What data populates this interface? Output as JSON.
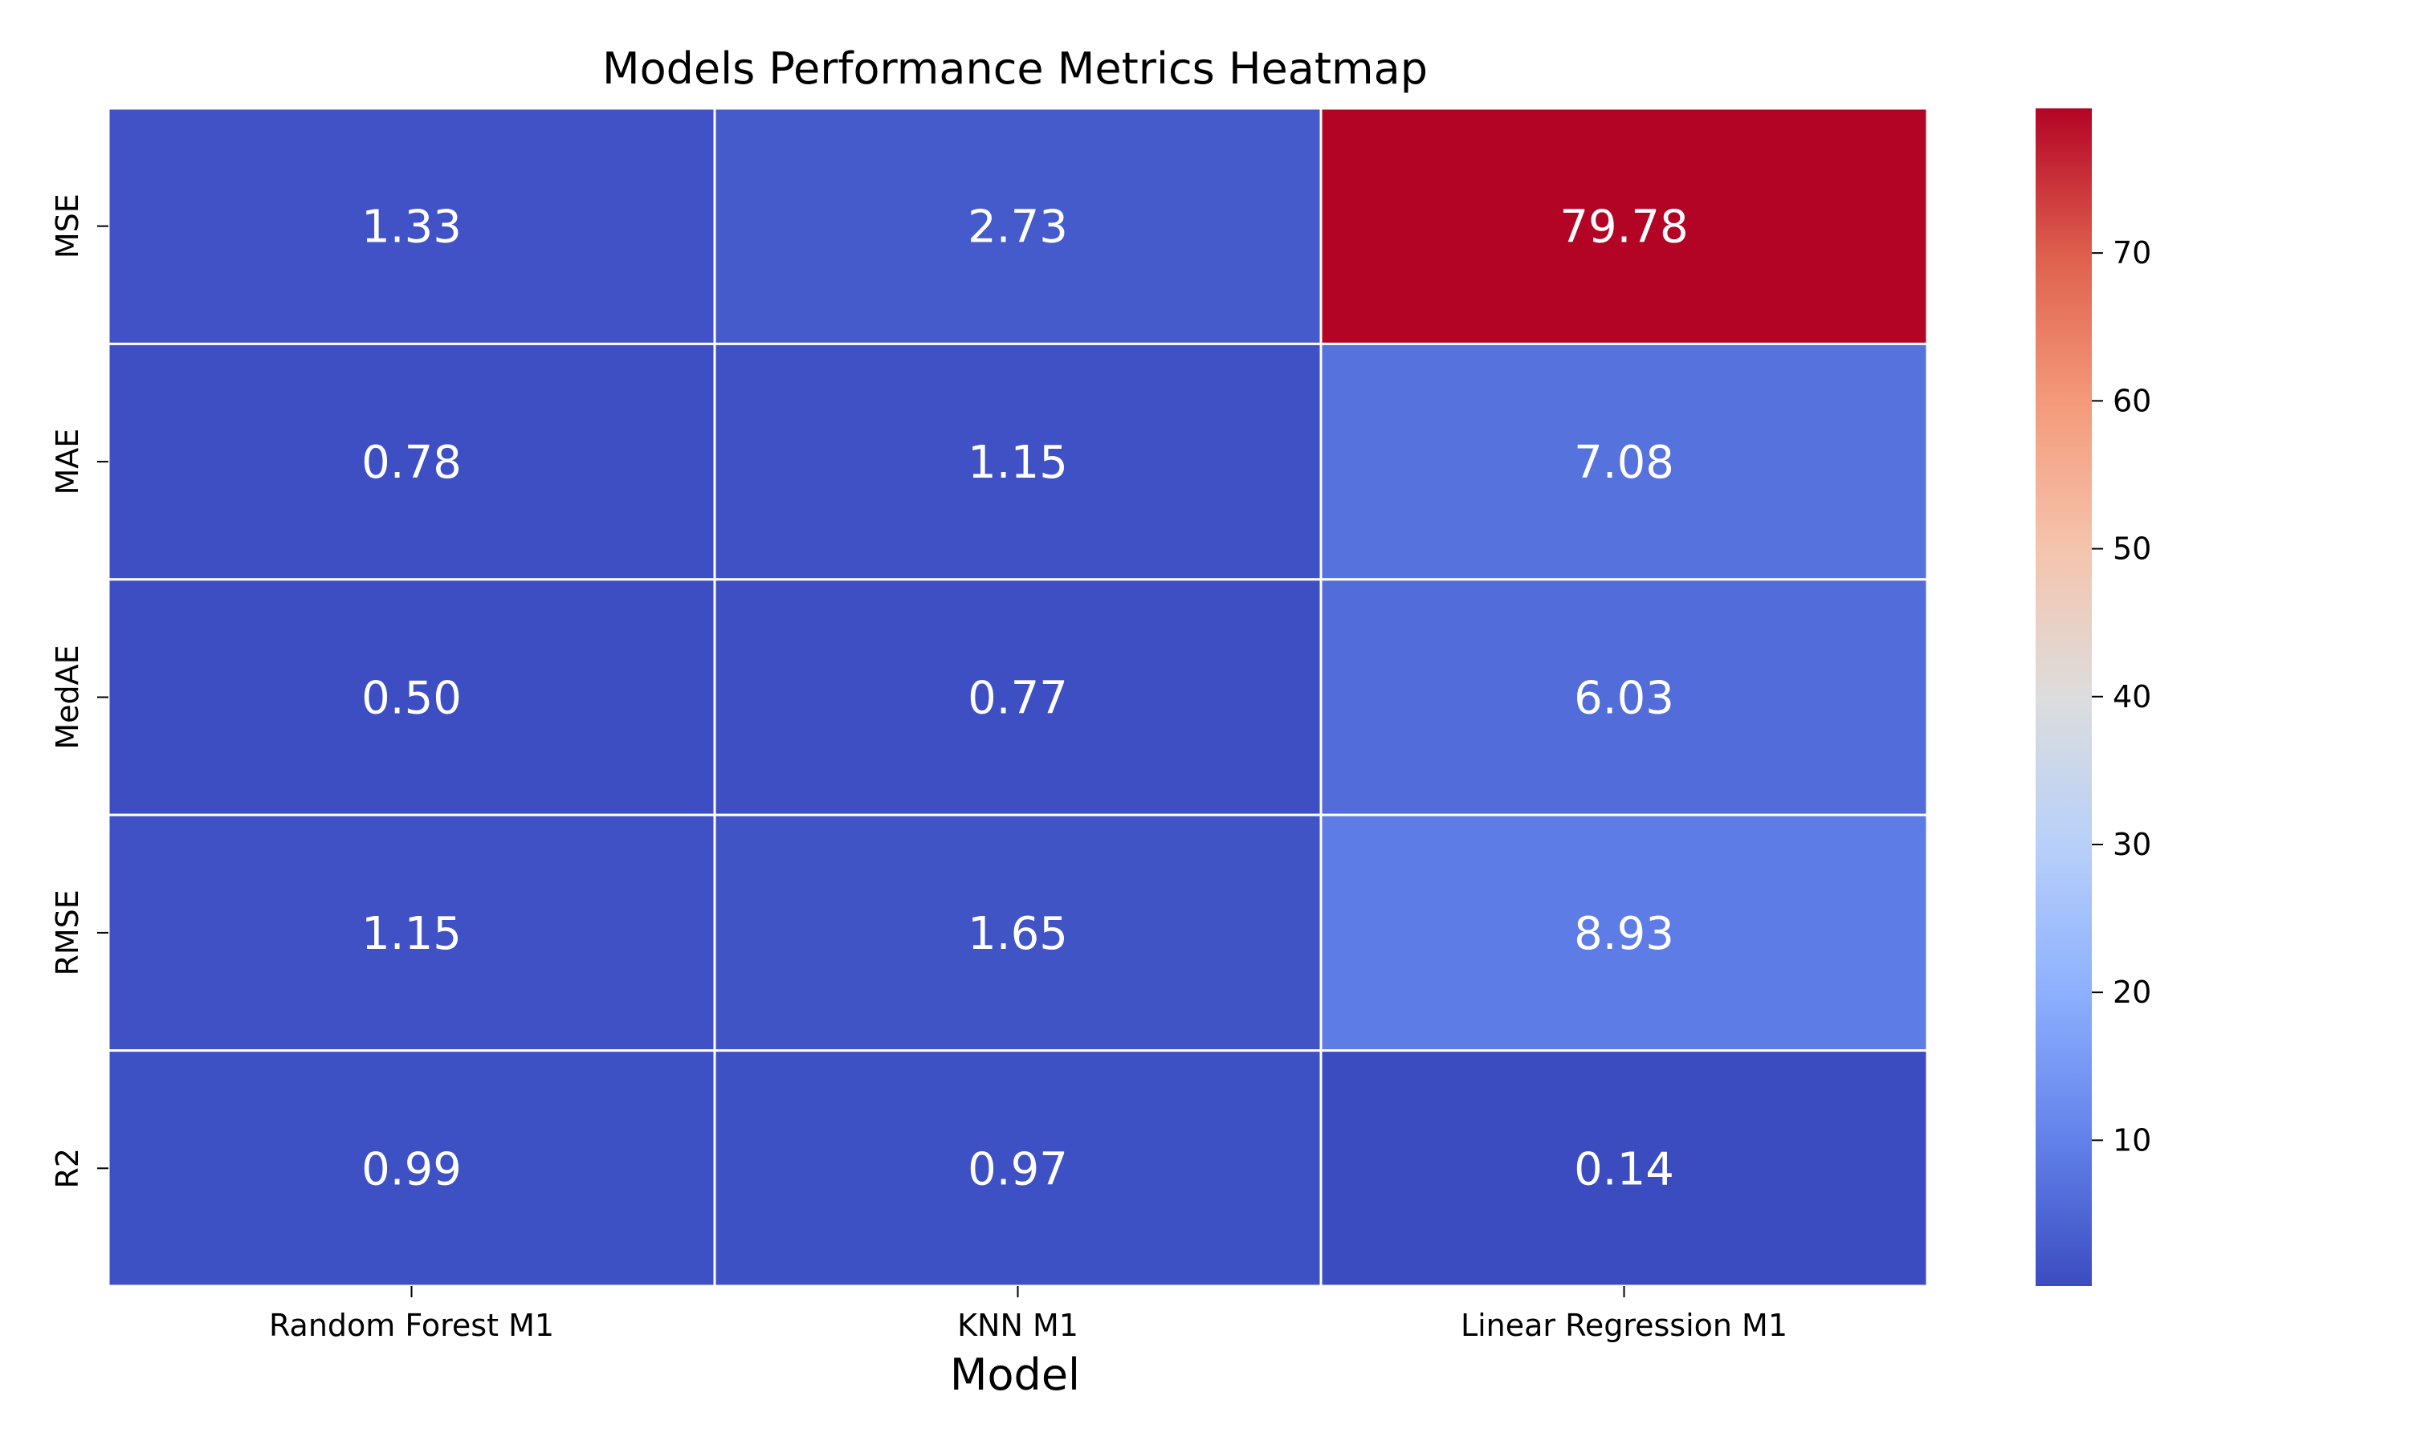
{
  "chart_data": {
    "type": "heatmap",
    "title": "Models Performance Metrics Heatmap",
    "xlabel": "Model",
    "ylabel": "",
    "x_categories": [
      "Random Forest M1",
      "KNN M1",
      "Linear Regression M1"
    ],
    "y_categories": [
      "MSE",
      "MAE",
      "MedAE",
      "RMSE",
      "R2"
    ],
    "values": [
      [
        1.33,
        2.73,
        79.78
      ],
      [
        0.78,
        1.15,
        7.08
      ],
      [
        0.5,
        0.77,
        6.03
      ],
      [
        1.15,
        1.65,
        8.93
      ],
      [
        0.99,
        0.97,
        0.14
      ]
    ],
    "cell_labels": [
      [
        "1.33",
        "2.73",
        "79.78"
      ],
      [
        "0.78",
        "1.15",
        "7.08"
      ],
      [
        "0.50",
        "0.77",
        "6.03"
      ],
      [
        "1.15",
        "1.65",
        "8.93"
      ],
      [
        "0.99",
        "0.97",
        "0.14"
      ]
    ],
    "colormap": "coolwarm",
    "colormap_stops": [
      "#3b4cc0",
      "#6282ea",
      "#8db0fe",
      "#b8d0f9",
      "#dcdddd",
      "#f5c4ad",
      "#f49a7b",
      "#de604d",
      "#b40426"
    ],
    "colorbar": {
      "vmin": 0.14,
      "vmax": 79.78,
      "ticks": [
        10,
        20,
        30,
        40,
        50,
        60,
        70
      ],
      "tick_labels": [
        "10",
        "20",
        "30",
        "40",
        "50",
        "60",
        "70"
      ]
    },
    "grid_line_color": "#ffffff",
    "cell_text_color": "#ffffff"
  }
}
